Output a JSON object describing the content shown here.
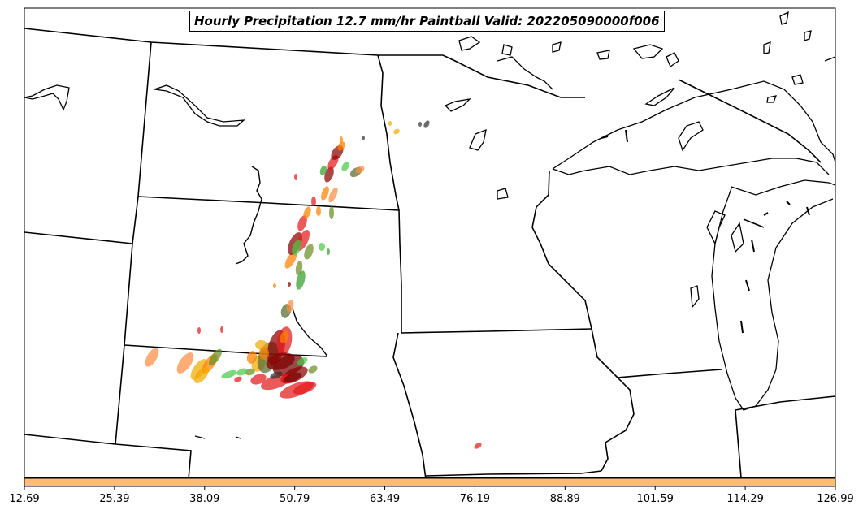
{
  "map": {
    "title": "Hourly Precipitation 12.7 mm/hr Paintball Valid: 202205090000f006",
    "colorbar": {
      "color": "#fdbf6f",
      "ticks": [
        "12.69",
        "25.39",
        "38.09",
        "50.79",
        "63.49",
        "76.19",
        "88.89",
        "101.59",
        "114.29",
        "126.99"
      ]
    },
    "paint_colors": [
      "#e31a1c",
      "#8b0000",
      "#ff7f00",
      "#33a02c",
      "#4ac948",
      "#6b8e23",
      "#ff8c42",
      "#f2a900",
      "#556b2f",
      "#7a0000",
      "#333333"
    ],
    "boundary_color": "#000000"
  }
}
